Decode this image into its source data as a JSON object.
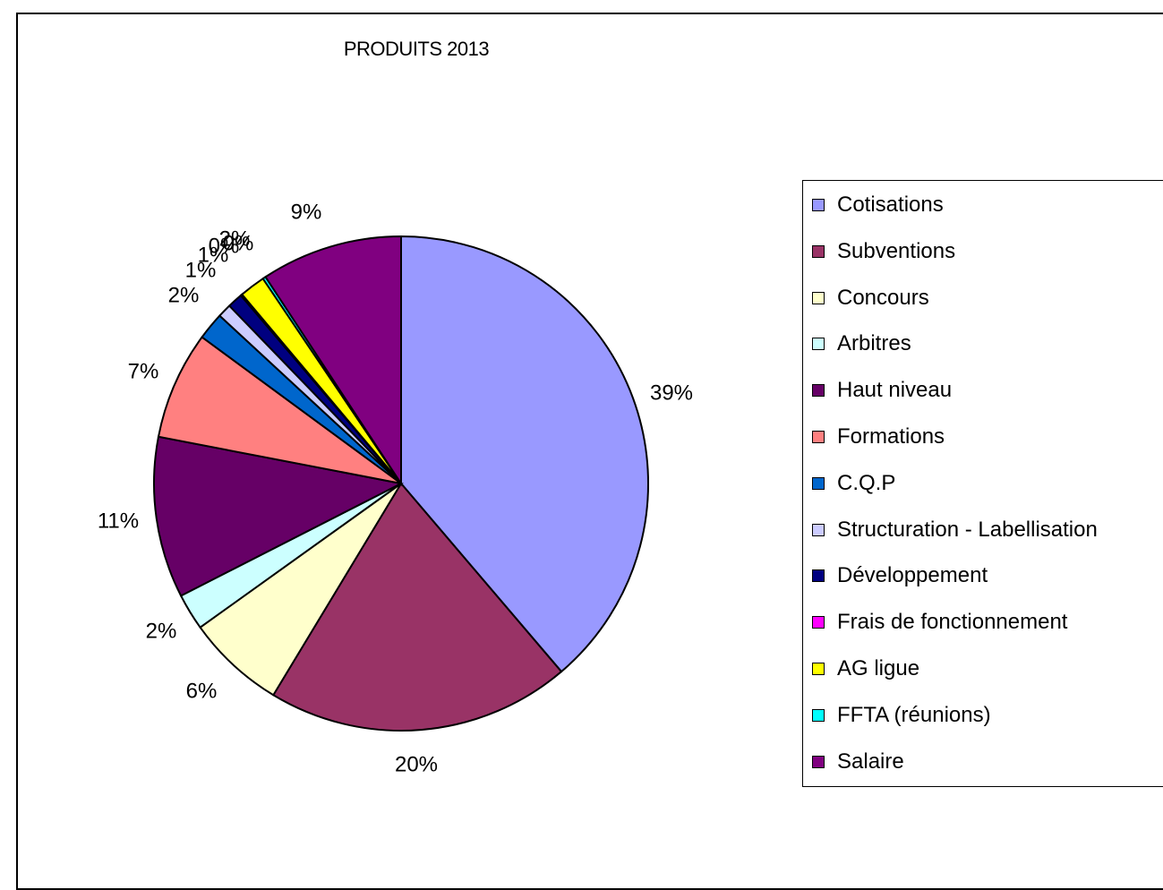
{
  "chart_data": {
    "type": "pie",
    "title": "PRODUITS 2013",
    "legend_position": "right",
    "slices": [
      {
        "name": "Cotisations",
        "value": 39,
        "label": "39%",
        "color": "#9999ff"
      },
      {
        "name": "Subventions",
        "value": 20,
        "label": "20%",
        "color": "#993366"
      },
      {
        "name": "Concours",
        "value": 6.5,
        "label": "6%",
        "color": "#ffffcc"
      },
      {
        "name": "Arbitres",
        "value": 2.4,
        "label": "2%",
        "color": "#ccffff"
      },
      {
        "name": "Haut niveau",
        "value": 10.6,
        "label": "11%",
        "color": "#660066"
      },
      {
        "name": "Formations",
        "value": 7.1,
        "label": "7%",
        "color": "#ff8080"
      },
      {
        "name": "C.Q.P",
        "value": 1.8,
        "label": "2%",
        "color": "#0066cc"
      },
      {
        "name": "Structuration - Labellisation",
        "value": 0.9,
        "label": "1%",
        "color": "#ccccff"
      },
      {
        "name": "Développement",
        "value": 1.0,
        "label": "1%",
        "color": "#000080"
      },
      {
        "name": "Frais de fonctionnement",
        "value": 0.1,
        "label": "0%",
        "color": "#ff00ff"
      },
      {
        "name": "AG ligue",
        "value": 1.7,
        "label": "2%",
        "color": "#ffff00"
      },
      {
        "name": "FFTA (réunions)",
        "value": 0.2,
        "label": "0%",
        "color": "#00ffff"
      },
      {
        "name": "Salaire",
        "value": 9.3,
        "label": "9%",
        "color": "#800080"
      }
    ]
  }
}
